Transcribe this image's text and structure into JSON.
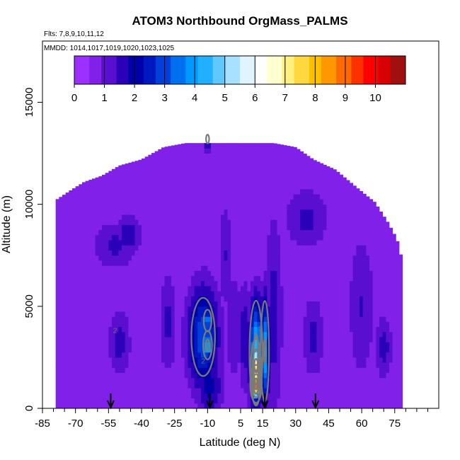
{
  "chart_data": {
    "type": "heatmap",
    "title": "ATOM3 Northbound OrgMass_PALMS",
    "flights_label": "Flts: 7,8,9,10,11,12",
    "dates_label": "MMDD: 1014,1017,1019,1020,1023,1025",
    "xlabel": "Latitude (deg N)",
    "ylabel": "Altitude (m)",
    "xlim": [
      -85,
      95
    ],
    "ylim": [
      0,
      18000
    ],
    "x_ticks": [
      -85,
      -70,
      -55,
      -40,
      -25,
      -10,
      5,
      15,
      30,
      45,
      60,
      75
    ],
    "x_minor_ticks": [
      -80,
      -75,
      -65,
      -60,
      -50,
      -45,
      -35,
      -30,
      -20,
      -15,
      0,
      10,
      20,
      25,
      35,
      40,
      50,
      55,
      65,
      70,
      80,
      85,
      90
    ],
    "y_ticks": [
      0,
      5000,
      10000,
      15000
    ],
    "colorbar": {
      "ticks": [
        0,
        1,
        2,
        3,
        4,
        5,
        6,
        7,
        8,
        9,
        10
      ],
      "range": [
        0,
        11
      ],
      "colors": [
        "#9b30ff",
        "#8020e8",
        "#5a0fd0",
        "#2a00b8",
        "#0000a8",
        "#0018c0",
        "#0040d8",
        "#0070f0",
        "#0099ff",
        "#20b0ff",
        "#60c8ff",
        "#a8e0ff",
        "#e0f4ff",
        "#ffffff",
        "#ffffd0",
        "#fff080",
        "#ffd840",
        "#ffc000",
        "#ff9800",
        "#ff6a00",
        "#ff3000",
        "#ff0000",
        "#d80000",
        "#a01010"
      ]
    },
    "envelope_top": [
      [
        -79,
        10200
      ],
      [
        -72,
        10700
      ],
      [
        -66,
        11100
      ],
      [
        -58,
        11400
      ],
      [
        -50,
        11900
      ],
      [
        -40,
        12200
      ],
      [
        -30,
        12800
      ],
      [
        -20,
        13000
      ],
      [
        -10,
        13000
      ],
      [
        0,
        13000
      ],
      [
        10,
        13000
      ],
      [
        20,
        13000
      ],
      [
        30,
        12800
      ],
      [
        38,
        12200
      ],
      [
        48,
        11700
      ],
      [
        58,
        10800
      ],
      [
        66,
        10100
      ],
      [
        72,
        9100
      ],
      [
        76,
        8300
      ],
      [
        79,
        7000
      ]
    ],
    "background_value": 0.5,
    "features": [
      {
        "lat": -10,
        "alt": 13200,
        "value": 2.2,
        "w": 2,
        "h": 600
      },
      {
        "lat": -52,
        "alt": 8000,
        "value": 1.5,
        "w": 10,
        "h": 1200
      },
      {
        "lat": -46,
        "alt": 8500,
        "value": 1.8,
        "w": 6,
        "h": 1000
      },
      {
        "lat": -50,
        "alt": 3200,
        "value": 1.6,
        "w": 5,
        "h": 1600
      },
      {
        "lat": -12,
        "alt": 3500,
        "value": 3.2,
        "w": 7,
        "h": 2500
      },
      {
        "lat": -10,
        "alt": 4300,
        "value": 3.8,
        "w": 2,
        "h": 600
      },
      {
        "lat": -10,
        "alt": 3100,
        "value": 4.6,
        "w": 2,
        "h": 700
      },
      {
        "lat": -9,
        "alt": 1100,
        "value": 2.0,
        "w": 6,
        "h": 1600
      },
      {
        "lat": -28,
        "alt": 4200,
        "value": 1.5,
        "w": 4,
        "h": 2500
      },
      {
        "lat": -2,
        "alt": 7500,
        "value": 1.4,
        "w": 3,
        "h": 2500
      },
      {
        "lat": 2,
        "alt": 4000,
        "value": 1.3,
        "w": 4,
        "h": 3000
      },
      {
        "lat": 7,
        "alt": 3500,
        "value": 1.8,
        "w": 3,
        "h": 2500
      },
      {
        "lat": 12,
        "alt": 2700,
        "value": 4.5,
        "w": 3,
        "h": 2600
      },
      {
        "lat": 12,
        "alt": 1800,
        "value": 7.5,
        "w": 2,
        "h": 1300
      },
      {
        "lat": 12,
        "alt": 1200,
        "value": 9.2,
        "w": 2,
        "h": 700
      },
      {
        "lat": 16,
        "alt": 2800,
        "value": 4.2,
        "w": 2,
        "h": 2600
      },
      {
        "lat": 20,
        "alt": 4500,
        "value": 1.6,
        "w": 4,
        "h": 5000
      },
      {
        "lat": 35,
        "alt": 9300,
        "value": 1.5,
        "w": 10,
        "h": 1500
      },
      {
        "lat": 38,
        "alt": 3500,
        "value": 1.5,
        "w": 5,
        "h": 2000
      },
      {
        "lat": 60,
        "alt": 5000,
        "value": 1.4,
        "w": 6,
        "h": 3500
      },
      {
        "lat": 70,
        "alt": 3000,
        "value": 1.6,
        "w": 4,
        "h": 1500
      }
    ],
    "contour_labels": [
      {
        "lat": -52,
        "alt": 3700,
        "text": "2"
      },
      {
        "lat": -12,
        "alt": 2200,
        "text": "2"
      },
      {
        "lat": 14,
        "alt": 3800,
        "text": "2"
      }
    ],
    "arrows": [
      -54,
      -9,
      16,
      39
    ]
  }
}
